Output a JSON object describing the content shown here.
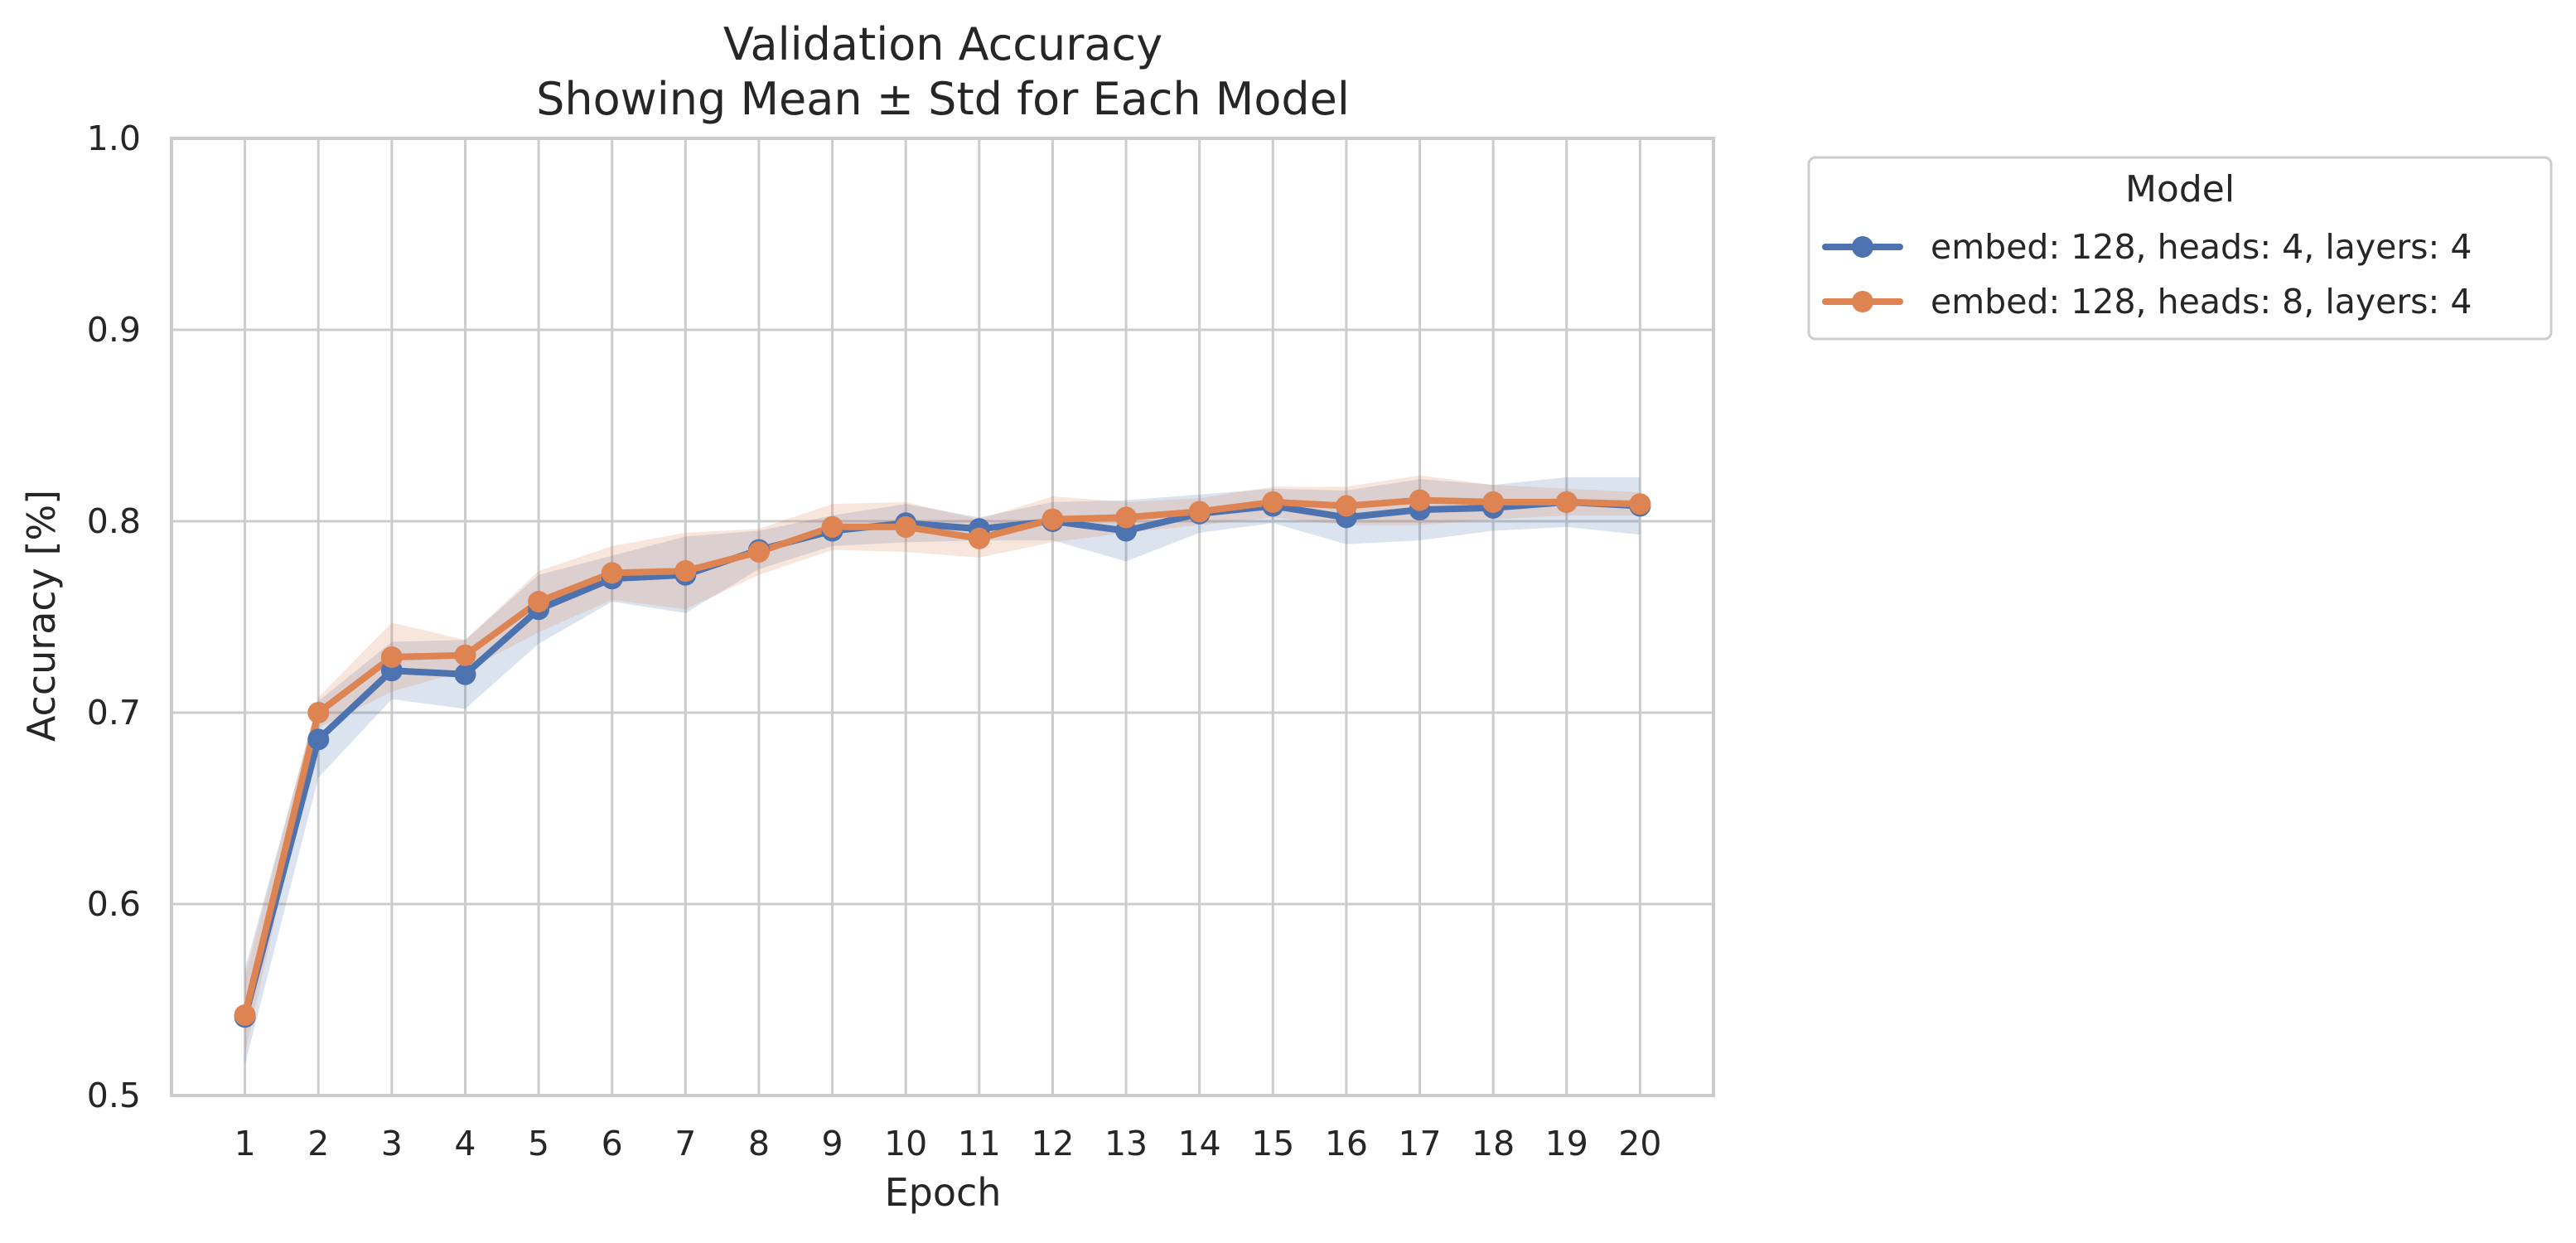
{
  "chart_data": {
    "type": "line",
    "title": "Validation Accuracy",
    "subtitle": "Showing Mean ± Std for Each Model",
    "xlabel": "Epoch",
    "ylabel": "Accuracy [%]",
    "ylim": [
      0.5,
      1.0
    ],
    "yticks": [
      "0.5",
      "0.6",
      "0.7",
      "0.8",
      "0.9",
      "1.0"
    ],
    "x": [
      1,
      2,
      3,
      4,
      5,
      6,
      7,
      8,
      9,
      10,
      11,
      12,
      13,
      14,
      15,
      16,
      17,
      18,
      19,
      20
    ],
    "grid": true,
    "legend": {
      "title": "Model",
      "placement": "outside-top-right"
    },
    "series": [
      {
        "name": "embed: 128, heads: 4, layers: 4",
        "color": "#4c72b0",
        "values": [
          0.541,
          0.686,
          0.722,
          0.72,
          0.754,
          0.77,
          0.772,
          0.785,
          0.795,
          0.799,
          0.796,
          0.8,
          0.795,
          0.804,
          0.808,
          0.802,
          0.806,
          0.807,
          0.81,
          0.808
        ],
        "std": [
          0.025,
          0.02,
          0.015,
          0.018,
          0.018,
          0.012,
          0.02,
          0.01,
          0.008,
          0.01,
          0.006,
          0.01,
          0.016,
          0.01,
          0.009,
          0.014,
          0.016,
          0.012,
          0.013,
          0.015
        ]
      },
      {
        "name": "embed: 128, heads: 8, layers: 4",
        "color": "#dd8452",
        "values": [
          0.542,
          0.7,
          0.729,
          0.73,
          0.758,
          0.773,
          0.774,
          0.784,
          0.797,
          0.797,
          0.791,
          0.801,
          0.802,
          0.805,
          0.81,
          0.808,
          0.811,
          0.81,
          0.81,
          0.809
        ],
        "std": [
          0.02,
          0.008,
          0.018,
          0.008,
          0.016,
          0.014,
          0.02,
          0.012,
          0.012,
          0.013,
          0.01,
          0.012,
          0.008,
          0.007,
          0.008,
          0.01,
          0.013,
          0.009,
          0.007,
          0.006
        ]
      }
    ]
  }
}
